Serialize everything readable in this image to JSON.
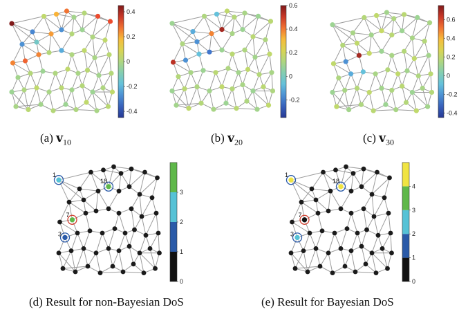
{
  "captions": {
    "a": {
      "prefix": "(a)",
      "vec": "v",
      "sub": "10"
    },
    "b": {
      "prefix": "(b)",
      "vec": "v",
      "sub": "20"
    },
    "c": {
      "prefix": "(c)",
      "vec": "v",
      "sub": "30"
    },
    "d": "(d) Result for non-Bayesian DoS",
    "e": "(e) Result for Bayesian DoS"
  },
  "colorbars": {
    "a": {
      "ticks": [
        "0.4",
        "0.2",
        "0",
        "-0.2",
        "-0.4"
      ],
      "range": [
        -0.45,
        0.45
      ]
    },
    "b": {
      "ticks": [
        "0.6",
        "0.4",
        "0.2",
        "0",
        "-0.2"
      ],
      "range": [
        -0.35,
        0.6
      ]
    },
    "c": {
      "ticks": [
        "0.6",
        "0.4",
        "0.2",
        "0",
        "-0.2",
        "-0.4"
      ],
      "range": [
        -0.45,
        0.75
      ]
    },
    "d": {
      "ticks": [
        "3",
        "2",
        "1",
        "0"
      ],
      "colors": [
        "#111111",
        "#2a5aa8",
        "#56c2d6",
        "#5fb84a"
      ]
    },
    "e": {
      "ticks": [
        "4",
        "3",
        "2",
        "1",
        "0"
      ],
      "colors": [
        "#111111",
        "#2a5aa8",
        "#56c2d6",
        "#5fb84a",
        "#f0e442"
      ]
    }
  },
  "node_labels": {
    "d": [
      "1",
      "18",
      "7",
      "3"
    ],
    "e": [
      "1",
      "18",
      "7",
      "3"
    ]
  },
  "colors": {
    "edge": "#9a9a9a",
    "default_node": "#7cc8a8",
    "dark_node": "#1b1b1b"
  }
}
